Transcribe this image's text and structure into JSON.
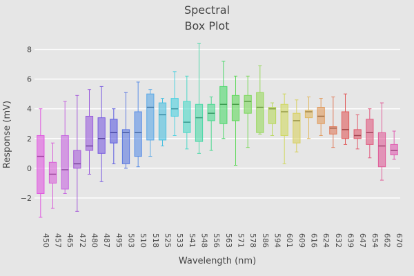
{
  "chart_data": {
    "type": "box",
    "title": [
      "Spectral",
      "Box Plot"
    ],
    "xlabel": "Wavelength (nm)",
    "ylabel": "Response (mV)",
    "ylim": [
      -4,
      9
    ],
    "yticks": [
      -2,
      0,
      2,
      4,
      6,
      8
    ],
    "grid": true,
    "boxes": [
      {
        "label": "450",
        "min": -3.3,
        "q1": -1.7,
        "median": 0.8,
        "q3": 2.2,
        "max": 4.0,
        "color": "#e056e0"
      },
      {
        "label": "457",
        "min": -2.7,
        "q1": -1.0,
        "median": -0.4,
        "q3": 0.4,
        "max": 1.7,
        "color": "#d860d8"
      },
      {
        "label": "465",
        "min": -1.7,
        "q1": -1.4,
        "median": -0.1,
        "q3": 2.2,
        "max": 4.5,
        "color": "#c666e0"
      },
      {
        "label": "472",
        "min": -2.9,
        "q1": 0.0,
        "median": 0.3,
        "q3": 1.2,
        "max": 4.9,
        "color": "#a65cd8"
      },
      {
        "label": "480",
        "min": -0.4,
        "q1": 1.2,
        "median": 1.5,
        "q3": 3.5,
        "max": 5.3,
        "color": "#9a5cdc"
      },
      {
        "label": "487",
        "min": -0.9,
        "q1": 1.0,
        "median": 2.0,
        "q3": 3.4,
        "max": 5.5,
        "color": "#7a5ce0"
      },
      {
        "label": "495",
        "min": 0.3,
        "q1": 1.7,
        "median": 2.4,
        "q3": 3.3,
        "max": 4.0,
        "color": "#5c5ce0"
      },
      {
        "label": "503",
        "min": 0.0,
        "q1": 0.3,
        "median": 2.4,
        "q3": 2.6,
        "max": 5.1,
        "color": "#5c78e0"
      },
      {
        "label": "510",
        "min": 0.1,
        "q1": 0.8,
        "median": 2.4,
        "q3": 3.8,
        "max": 5.8,
        "color": "#5c90e6"
      },
      {
        "label": "518",
        "min": 0.8,
        "q1": 1.9,
        "median": 4.1,
        "q3": 5.0,
        "max": 5.3,
        "color": "#5ca8e6"
      },
      {
        "label": "525",
        "min": 1.5,
        "q1": 1.9,
        "median": 3.6,
        "q3": 4.4,
        "max": 4.7,
        "color": "#4cc0e0"
      },
      {
        "label": "533",
        "min": 2.2,
        "q1": 3.5,
        "median": 4.0,
        "q3": 4.7,
        "max": 6.5,
        "color": "#4cd0e0"
      },
      {
        "label": "541",
        "min": 1.3,
        "q1": 2.4,
        "median": 3.1,
        "q3": 4.5,
        "max": 6.2,
        "color": "#4cd8c8"
      },
      {
        "label": "548",
        "min": 1.0,
        "q1": 1.8,
        "median": 3.4,
        "q3": 4.3,
        "max": 8.4,
        "color": "#4cd8a8"
      },
      {
        "label": "556",
        "min": 1.2,
        "q1": 3.2,
        "median": 3.7,
        "q3": 4.3,
        "max": 4.8,
        "color": "#4cd890"
      },
      {
        "label": "563",
        "min": 2.0,
        "q1": 3.0,
        "median": 4.3,
        "q3": 5.5,
        "max": 7.2,
        "color": "#4cd86c"
      },
      {
        "label": "571",
        "min": 0.2,
        "q1": 3.2,
        "median": 4.3,
        "q3": 4.9,
        "max": 6.2,
        "color": "#60d85c"
      },
      {
        "label": "578",
        "min": 1.4,
        "q1": 3.7,
        "median": 4.5,
        "q3": 4.9,
        "max": 6.2,
        "color": "#7cd85c"
      },
      {
        "label": "586",
        "min": 2.3,
        "q1": 2.4,
        "median": 4.1,
        "q3": 5.1,
        "max": 6.9,
        "color": "#98d85c"
      },
      {
        "label": "594",
        "min": 2.2,
        "q1": 3.0,
        "median": 4.0,
        "q3": 4.1,
        "max": 4.4,
        "color": "#b8d85c"
      },
      {
        "label": "601",
        "min": 0.3,
        "q1": 2.2,
        "median": 3.8,
        "q3": 4.3,
        "max": 5.0,
        "color": "#d0d860"
      },
      {
        "label": "609",
        "min": 1.1,
        "q1": 1.7,
        "median": 3.2,
        "q3": 3.7,
        "max": 4.6,
        "color": "#d8d060"
      },
      {
        "label": "616",
        "min": 2.0,
        "q1": 3.4,
        "median": 3.8,
        "q3": 3.9,
        "max": 4.8,
        "color": "#e0b860"
      },
      {
        "label": "624",
        "min": 2.2,
        "q1": 3.0,
        "median": 3.5,
        "q3": 4.1,
        "max": 4.7,
        "color": "#e09a5c"
      },
      {
        "label": "632",
        "min": 1.4,
        "q1": 2.3,
        "median": 2.7,
        "q3": 2.8,
        "max": 4.8,
        "color": "#e07c5c"
      },
      {
        "label": "639",
        "min": 1.6,
        "q1": 2.0,
        "median": 2.6,
        "q3": 3.8,
        "max": 5.0,
        "color": "#e05c5c"
      },
      {
        "label": "647",
        "min": 1.3,
        "q1": 2.0,
        "median": 2.2,
        "q3": 2.6,
        "max": 3.6,
        "color": "#e05c6c"
      },
      {
        "label": "654",
        "min": 0.7,
        "q1": 1.6,
        "median": 2.4,
        "q3": 3.3,
        "max": 4.0,
        "color": "#e05c80"
      },
      {
        "label": "662",
        "min": -0.8,
        "q1": 0.1,
        "median": 1.5,
        "q3": 2.4,
        "max": 4.4,
        "color": "#e05c98"
      },
      {
        "label": "670",
        "min": 0.6,
        "q1": 0.9,
        "median": 1.2,
        "q3": 1.6,
        "max": 2.5,
        "color": "#e05cb0"
      }
    ]
  }
}
